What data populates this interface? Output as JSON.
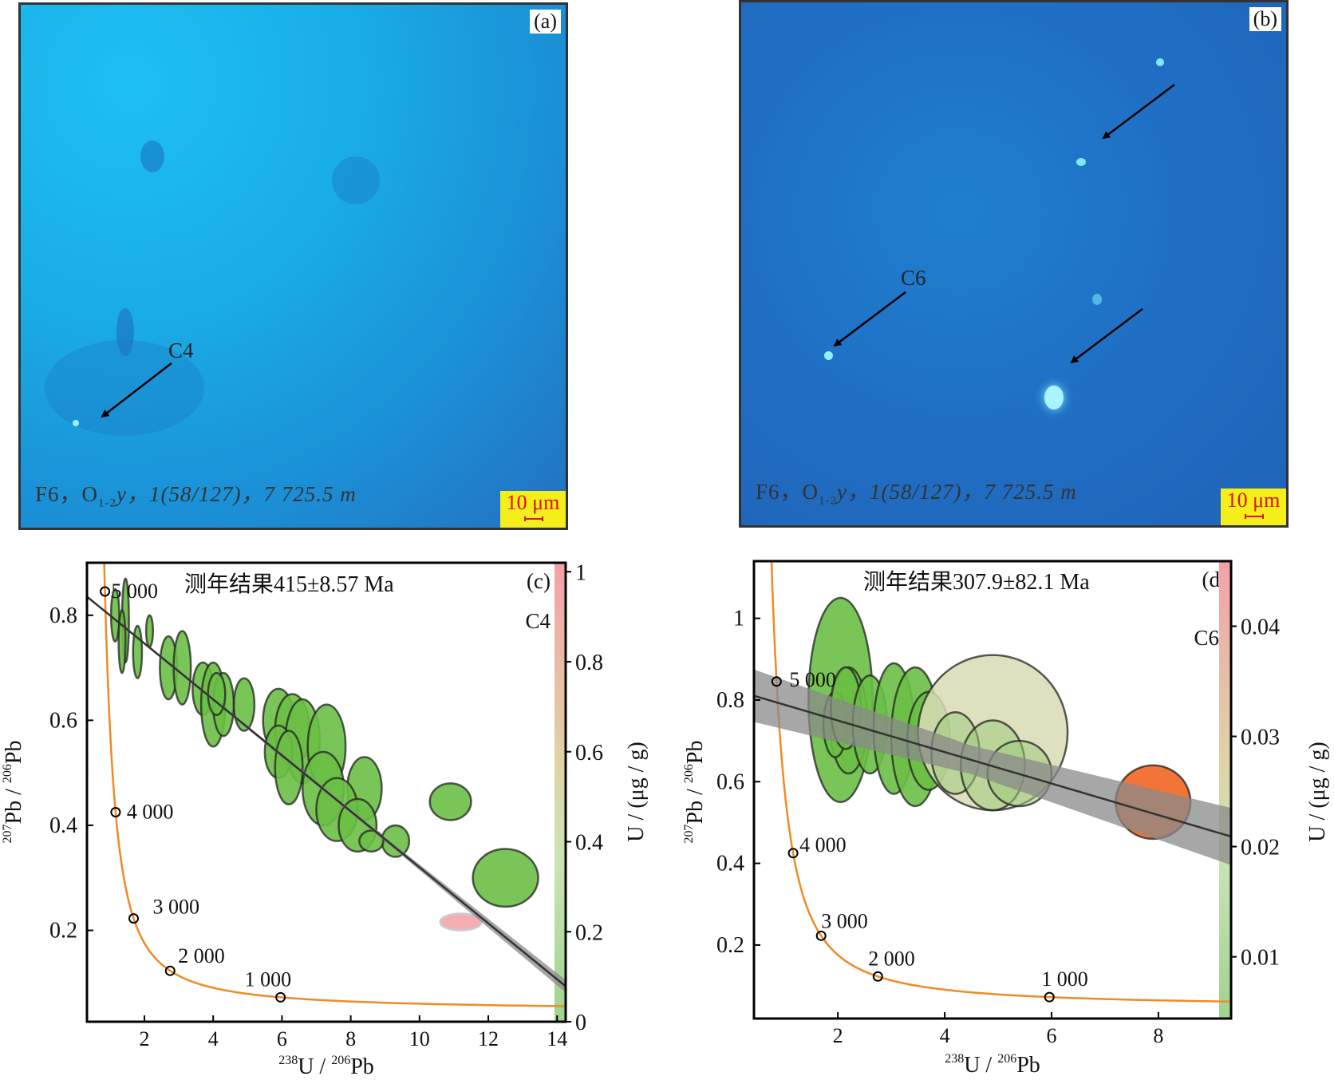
{
  "panels": {
    "a": {
      "label": "(a)",
      "caption_pre": "F6，O",
      "caption_sub": "1-2",
      "caption_post": "y，1(58/127)，7 725.5 m",
      "scale_bar": "10 μm",
      "point_label": "C4"
    },
    "b": {
      "label": "(b)",
      "caption_pre": "F6，O",
      "caption_sub": "1-2",
      "caption_post": "y，1(58/127)，7 725.5 m",
      "scale_bar": "10 μm",
      "point_label": "C6"
    }
  },
  "colors": {
    "ellipse_green": "#6abf45",
    "ellipse_pink": "#f4a5a8",
    "ellipse_beige": "#d8dab4",
    "ellipse_light_green": "#9ccb7a",
    "ellipse_orange": "#f26522",
    "concordia": "#f08a24",
    "regression": "#333333",
    "error_band": "#8a8a8a"
  },
  "chart_data": [
    {
      "id": "c",
      "type": "scatter",
      "panel_label": "(c)",
      "title": "测年结果415±8.57 Ma",
      "sample": "C4",
      "xlabel_parts": [
        "238",
        "U / ",
        "206",
        "Pb"
      ],
      "ylabel_parts": [
        "207",
        "Pb / ",
        "206",
        "Pb"
      ],
      "colorbar_label": "U / (μg / g)",
      "xlim": [
        0.33,
        14.25
      ],
      "ylim": [
        0.026,
        0.9
      ],
      "xticks": [
        2,
        4,
        6,
        8,
        10,
        12,
        14
      ],
      "yticks": [
        0.2,
        0.4,
        0.6,
        0.8
      ],
      "yticklabels": [
        "0.2",
        "0.4",
        "0.6",
        "0.8"
      ],
      "colorbar_range": [
        0,
        1.02
      ],
      "colorbar_ticks": [
        0,
        0.2,
        0.4,
        0.6,
        0.8,
        1
      ],
      "colorbar_ticklabels": [
        "0",
        "0.2",
        "0.4",
        "0.6",
        "0.8",
        "1"
      ],
      "concordia_ages": [
        1000,
        2000,
        3000,
        4000,
        5000
      ],
      "concordia_labels": [
        "1 000",
        "2 000",
        "3 000",
        "4 000",
        "5 000"
      ],
      "regression": {
        "intercept": 0.853,
        "slope": -0.0533,
        "band": 0.006
      },
      "ellipses": [
        {
          "x": 1.15,
          "y": 0.8,
          "sx": 0.12,
          "sy": 0.05,
          "c": "green"
        },
        {
          "x": 1.45,
          "y": 0.79,
          "sx": 0.1,
          "sy": 0.08,
          "c": "green"
        },
        {
          "x": 1.35,
          "y": 0.75,
          "sx": 0.1,
          "sy": 0.06,
          "c": "green"
        },
        {
          "x": 1.8,
          "y": 0.73,
          "sx": 0.13,
          "sy": 0.05,
          "c": "green"
        },
        {
          "x": 2.15,
          "y": 0.77,
          "sx": 0.1,
          "sy": 0.03,
          "c": "green"
        },
        {
          "x": 2.7,
          "y": 0.7,
          "sx": 0.25,
          "sy": 0.06,
          "c": "green"
        },
        {
          "x": 3.1,
          "y": 0.7,
          "sx": 0.25,
          "sy": 0.07,
          "c": "green"
        },
        {
          "x": 3.7,
          "y": 0.66,
          "sx": 0.3,
          "sy": 0.05,
          "c": "green"
        },
        {
          "x": 4.0,
          "y": 0.63,
          "sx": 0.35,
          "sy": 0.08,
          "c": "green"
        },
        {
          "x": 4.3,
          "y": 0.63,
          "sx": 0.3,
          "sy": 0.06,
          "c": "green"
        },
        {
          "x": 4.1,
          "y": 0.65,
          "sx": 0.25,
          "sy": 0.04,
          "c": "green"
        },
        {
          "x": 4.9,
          "y": 0.63,
          "sx": 0.3,
          "sy": 0.05,
          "c": "green"
        },
        {
          "x": 5.9,
          "y": 0.6,
          "sx": 0.45,
          "sy": 0.06,
          "c": "green"
        },
        {
          "x": 6.3,
          "y": 0.58,
          "sx": 0.5,
          "sy": 0.07,
          "c": "green"
        },
        {
          "x": 6.6,
          "y": 0.56,
          "sx": 0.5,
          "sy": 0.08,
          "c": "green"
        },
        {
          "x": 7.3,
          "y": 0.55,
          "sx": 0.55,
          "sy": 0.08,
          "c": "green"
        },
        {
          "x": 5.9,
          "y": 0.54,
          "sx": 0.4,
          "sy": 0.05,
          "c": "green"
        },
        {
          "x": 6.2,
          "y": 0.51,
          "sx": 0.4,
          "sy": 0.07,
          "c": "green"
        },
        {
          "x": 8.4,
          "y": 0.47,
          "sx": 0.5,
          "sy": 0.06,
          "c": "green"
        },
        {
          "x": 7.2,
          "y": 0.47,
          "sx": 0.6,
          "sy": 0.07,
          "c": "green"
        },
        {
          "x": 7.6,
          "y": 0.43,
          "sx": 0.6,
          "sy": 0.06,
          "c": "green"
        },
        {
          "x": 8.2,
          "y": 0.4,
          "sx": 0.55,
          "sy": 0.05,
          "c": "green"
        },
        {
          "x": 9.3,
          "y": 0.37,
          "sx": 0.4,
          "sy": 0.03,
          "c": "green"
        },
        {
          "x": 8.6,
          "y": 0.37,
          "sx": 0.35,
          "sy": 0.02,
          "c": "green"
        },
        {
          "x": 10.9,
          "y": 0.445,
          "sx": 0.6,
          "sy": 0.035,
          "c": "green"
        },
        {
          "x": 12.5,
          "y": 0.3,
          "sx": 0.95,
          "sy": 0.055,
          "c": "green"
        },
        {
          "x": 11.2,
          "y": 0.216,
          "sx": 0.6,
          "sy": 0.016,
          "c": "pink"
        }
      ]
    },
    {
      "id": "d",
      "type": "scatter",
      "panel_label": "(d)",
      "title": "测年结果307.9±82.1 Ma",
      "sample": "C6",
      "xlabel_parts": [
        "238",
        "U / ",
        "206",
        "Pb"
      ],
      "ylabel_parts": [
        "207",
        "Pb / ",
        "206",
        "Pb"
      ],
      "colorbar_label": "U / (μg / g)",
      "xlim": [
        0.43,
        9.36
      ],
      "ylim": [
        0.02,
        1.14
      ],
      "xticks": [
        2,
        4,
        6,
        8
      ],
      "yticks": [
        0.2,
        0.4,
        0.6,
        0.8,
        1.0
      ],
      "yticklabels": [
        "0.2",
        "0.4",
        "0.6",
        "0.8",
        "1"
      ],
      "colorbar_range": [
        0.0044,
        0.0459
      ],
      "colorbar_ticks": [
        0.01,
        0.02,
        0.03,
        0.04
      ],
      "colorbar_ticklabels": [
        "0.01",
        "0.02",
        "0.03",
        "0.04"
      ],
      "concordia_ages": [
        1000,
        2000,
        3000,
        4000,
        5000
      ],
      "concordia_labels": [
        "1 000",
        "2 000",
        "3 000",
        "4 000",
        "5 000"
      ],
      "regression": {
        "intercept": 0.827,
        "slope": -0.0386,
        "band_min": 0.035,
        "band_max": 0.07
      },
      "ellipses": [
        {
          "x": 2.05,
          "y": 0.8,
          "sx": 0.6,
          "sy": 0.25,
          "c": "green"
        },
        {
          "x": 2.2,
          "y": 0.75,
          "sx": 0.35,
          "sy": 0.13,
          "c": "green"
        },
        {
          "x": 1.95,
          "y": 0.74,
          "sx": 0.22,
          "sy": 0.08,
          "c": "green"
        },
        {
          "x": 2.15,
          "y": 0.78,
          "sx": 0.28,
          "sy": 0.1,
          "c": "green"
        },
        {
          "x": 2.6,
          "y": 0.74,
          "sx": 0.32,
          "sy": 0.12,
          "c": "green"
        },
        {
          "x": 3.05,
          "y": 0.73,
          "sx": 0.38,
          "sy": 0.16,
          "c": "green"
        },
        {
          "x": 3.45,
          "y": 0.71,
          "sx": 0.45,
          "sy": 0.17,
          "c": "green"
        },
        {
          "x": 3.7,
          "y": 0.7,
          "sx": 0.4,
          "sy": 0.12,
          "c": "green"
        },
        {
          "x": 4.9,
          "y": 0.72,
          "sx": 1.4,
          "sy": 0.19,
          "c": "beige"
        },
        {
          "x": 4.2,
          "y": 0.67,
          "sx": 0.45,
          "sy": 0.1,
          "c": "lightgreen"
        },
        {
          "x": 4.9,
          "y": 0.64,
          "sx": 0.6,
          "sy": 0.11,
          "c": "lightgreen"
        },
        {
          "x": 5.4,
          "y": 0.62,
          "sx": 0.6,
          "sy": 0.08,
          "c": "lightgreen"
        },
        {
          "x": 7.9,
          "y": 0.55,
          "sx": 0.7,
          "sy": 0.09,
          "c": "orange"
        }
      ]
    }
  ]
}
